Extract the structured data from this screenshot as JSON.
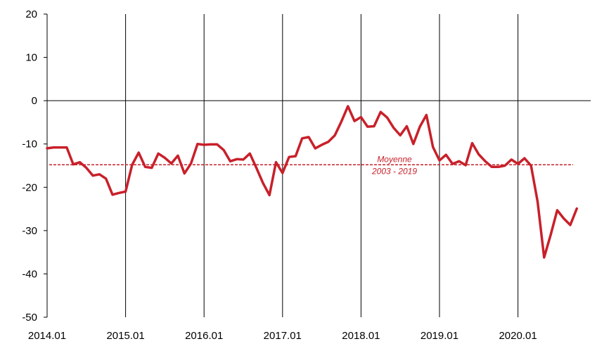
{
  "chart_data": {
    "type": "line",
    "title": "",
    "xlabel": "",
    "ylabel": "",
    "ylim": [
      -50,
      20
    ],
    "yticks": [
      20,
      10,
      0,
      -10,
      -20,
      -30,
      -40,
      -50
    ],
    "xticks": [
      "2014.01",
      "2015.01",
      "2016.01",
      "2017.01",
      "2018.01",
      "2019.01",
      "2020.01"
    ],
    "grid": "vertical lines at year starts",
    "series": [
      {
        "name": "",
        "color": "#c8202a",
        "start": "2014.01",
        "frequency": "monthly",
        "values": [
          -11,
          -10.8,
          -10.8,
          -10.8,
          -14.7,
          -14.2,
          -15.5,
          -17.3,
          -17,
          -18,
          -21.7,
          -21.3,
          -21,
          -14.8,
          -12,
          -15.3,
          -15.5,
          -12.2,
          -13.2,
          -14.5,
          -12.7,
          -16.8,
          -14.5,
          -10,
          -10.2,
          -10.1,
          -10.1,
          -11.4,
          -14,
          -13.5,
          -13.6,
          -12.2,
          -15.5,
          -19,
          -21.8,
          -14.2,
          -16.7,
          -13,
          -12.8,
          -8.7,
          -8.4,
          -11,
          -10.2,
          -9.5,
          -8,
          -4.8,
          -1.3,
          -4.7,
          -3.8,
          -6,
          -5.9,
          -2.6,
          -3.9,
          -6.3,
          -8,
          -5.9,
          -10,
          -6,
          -3.3,
          -10.7,
          -13.8,
          -12.5,
          -14.6,
          -14,
          -14.9,
          -9.8,
          -12.4,
          -14,
          -15.3,
          -15.3,
          -15,
          -13.6,
          -14.6,
          -13.3,
          -15,
          -23.3,
          -36.2,
          -31,
          -25.3,
          -27.2,
          -28.7,
          -24.9
        ]
      }
    ],
    "reference_line": {
      "value": -14.8,
      "color": "#c8202a",
      "style": "dashed",
      "label_line1": "Moyenne",
      "label_line2": "2003 - 2019"
    }
  }
}
